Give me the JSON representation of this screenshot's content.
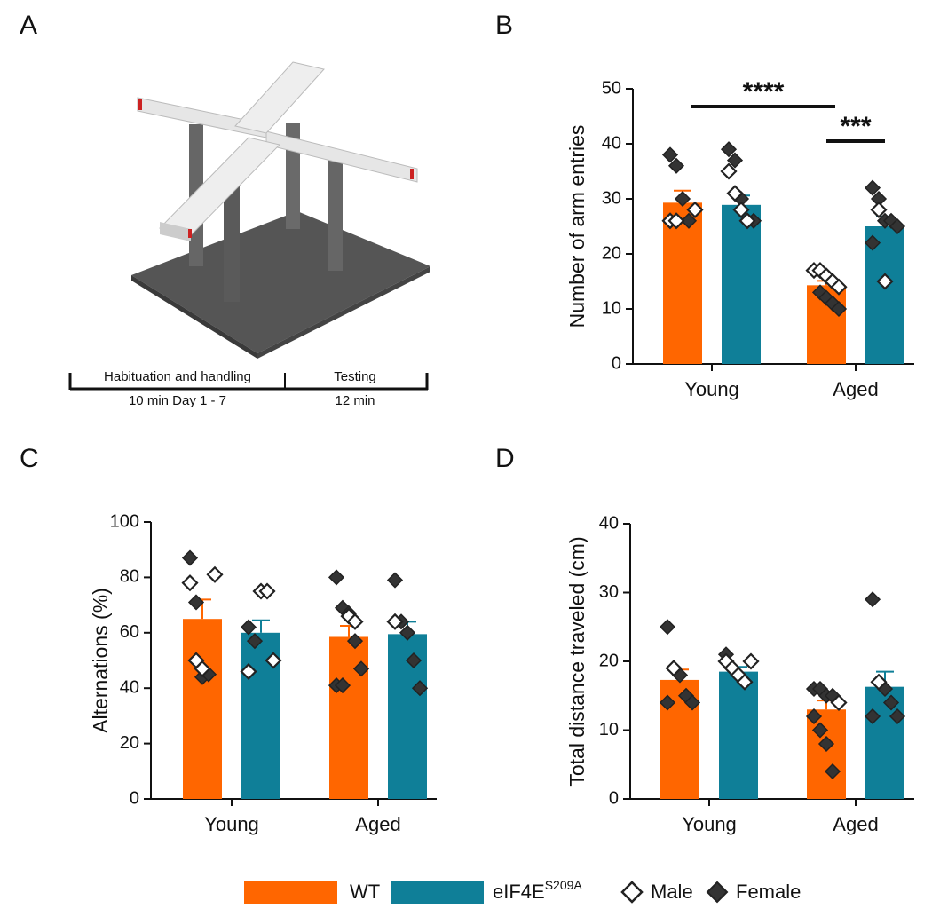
{
  "panel_labels": [
    "A",
    "B",
    "C",
    "D"
  ],
  "timeline": {
    "phases": [
      "Habituation and handling",
      "Testing"
    ],
    "durations": [
      "10 min Day 1 - 7",
      "12 min"
    ]
  },
  "legend": {
    "series": [
      {
        "name": "WT",
        "color": "#ff6600"
      },
      {
        "name": "eIF4E",
        "superscript": "S209A",
        "color": "#0f7f98"
      }
    ],
    "markers": [
      "Male",
      "Female"
    ]
  },
  "chart_data": [
    {
      "type": "bar",
      "ylabel": "Number of arm entries",
      "categories": [
        "Young",
        "Aged"
      ],
      "ylim": [
        0,
        50
      ],
      "yticks": [
        0,
        10,
        20,
        30,
        40,
        50
      ],
      "series": [
        {
          "values": [
            29.3,
            14.3
          ],
          "errors": [
            2.2,
            0.8
          ],
          "points": [
            {
              "male": [
                28,
                26,
                26
              ],
              "female": [
                38,
                36,
                30,
                26
              ]
            },
            {
              "male": [
                17,
                17,
                16,
                15,
                14
              ],
              "female": [
                17,
                13,
                12,
                11,
                10
              ]
            }
          ]
        },
        {
          "values": [
            28.9,
            25.0
          ],
          "errors": [
            1.7,
            1.8
          ],
          "points": [
            {
              "male": [
                35,
                31,
                28,
                26
              ],
              "female": [
                39,
                37,
                30,
                26,
                26
              ]
            },
            {
              "male": [
                28,
                15
              ],
              "female": [
                32,
                30,
                26,
                26,
                25,
                22
              ]
            }
          ]
        }
      ],
      "annotations": [
        {
          "text": "****",
          "between": [
            [
              0,
              0
            ],
            [
              0,
              1
            ]
          ]
        },
        {
          "text": "***",
          "between": [
            [
              0,
              1
            ],
            [
              1,
              1
            ]
          ]
        }
      ]
    },
    {
      "type": "bar",
      "ylabel": "Alternations (%)",
      "categories": [
        "Young",
        "Aged"
      ],
      "ylim": [
        0,
        100
      ],
      "yticks": [
        0,
        20,
        40,
        60,
        80,
        100
      ],
      "series": [
        {
          "values": [
            65,
            58.5
          ],
          "errors": [
            7,
            4
          ],
          "points": [
            {
              "male": [
                81,
                78,
                50,
                47
              ],
              "female": [
                87,
                71,
                44,
                45
              ]
            },
            {
              "male": [
                66,
                64
              ],
              "female": [
                80,
                69,
                67,
                57,
                47,
                41,
                41
              ]
            }
          ]
        },
        {
          "values": [
            60,
            59.5
          ],
          "errors": [
            4.5,
            4.5
          ],
          "points": [
            {
              "male": [
                75,
                75,
                50,
                46
              ],
              "female": [
                62,
                57
              ]
            },
            {
              "male": [
                64
              ],
              "female": [
                79,
                64,
                60,
                50,
                40
              ]
            }
          ]
        }
      ]
    },
    {
      "type": "bar",
      "ylabel": "Total distance traveled (cm)",
      "categories": [
        "Young",
        "Aged"
      ],
      "ylim": [
        0,
        40
      ],
      "yticks": [
        0,
        10,
        20,
        30,
        40
      ],
      "series": [
        {
          "values": [
            17.3,
            13
          ],
          "errors": [
            1.5,
            1.3
          ],
          "points": [
            {
              "male": [
                19
              ],
              "female": [
                25,
                19,
                18,
                15,
                14,
                14
              ]
            },
            {
              "male": [
                14
              ],
              "female": [
                16,
                16,
                15,
                15,
                14,
                12,
                10,
                8,
                4
              ]
            }
          ]
        },
        {
          "values": [
            18.5,
            16.3
          ],
          "errors": [
            0.7,
            2.2
          ],
          "points": [
            {
              "male": [
                20,
                20,
                19,
                18,
                17
              ],
              "female": [
                21,
                19,
                18,
                17
              ]
            },
            {
              "male": [
                17
              ],
              "female": [
                29,
                17,
                16,
                14,
                12,
                12
              ]
            }
          ]
        }
      ]
    }
  ]
}
